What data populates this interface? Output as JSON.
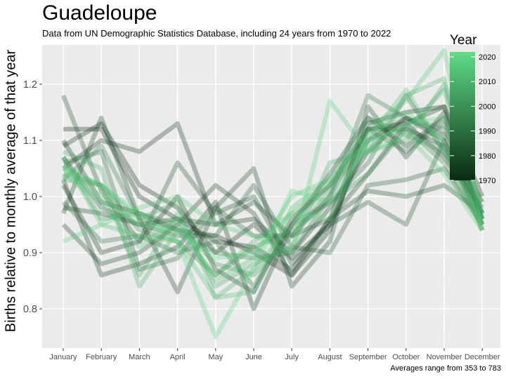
{
  "chart_data": {
    "type": "line",
    "title": "Guadeloupe",
    "subtitle": "Data from UN Demographic Statistics Database, including 24 years from 1970 to 2022",
    "caption": "Averages range from 353 to 783",
    "xlabel": "",
    "ylabel": "Births relative to monthly average of that year",
    "categories": [
      "January",
      "February",
      "March",
      "April",
      "May",
      "June",
      "July",
      "August",
      "September",
      "October",
      "November",
      "December"
    ],
    "ylim": [
      0.73,
      1.27
    ],
    "yticks": [
      0.8,
      0.9,
      1.0,
      1.1,
      1.2
    ],
    "ytick_labels": [
      "0.8",
      "0.9",
      "1.0",
      "1.1",
      "1.2"
    ],
    "legend": {
      "title": "Year",
      "placement": "right",
      "range": [
        1970,
        2022
      ],
      "ticks": [
        1970,
        1980,
        1990,
        2000,
        2010,
        2020
      ],
      "tick_labels": [
        "1970",
        "1980",
        "1990",
        "2000",
        "2010",
        "2020"
      ],
      "low_color": "#0a2a12",
      "high_color": "#5fdc86"
    },
    "background_color": "#ebebeb",
    "grid": true,
    "series": [
      {
        "year": 1970,
        "values": [
          1.12,
          1.12,
          1.0,
          0.96,
          0.92,
          0.91,
          0.87,
          0.96,
          1.13,
          1.15,
          1.16,
          1.0
        ]
      },
      {
        "year": 1971,
        "values": [
          1.09,
          1.13,
          1.02,
          0.98,
          0.9,
          0.95,
          0.89,
          0.95,
          1.1,
          1.14,
          1.11,
          0.97
        ]
      },
      {
        "year": 1972,
        "values": [
          1.1,
          0.99,
          0.97,
          0.94,
          0.93,
          0.9,
          0.86,
          0.94,
          1.12,
          1.12,
          1.09,
          0.96
        ]
      },
      {
        "year": 1973,
        "values": [
          1.05,
          1.1,
          1.08,
          1.13,
          0.95,
          0.96,
          0.9,
          0.98,
          1.08,
          1.14,
          1.1,
          0.94
        ]
      },
      {
        "year": 1974,
        "values": [
          1.02,
          0.9,
          0.92,
          1.0,
          0.87,
          0.83,
          0.96,
          1.02,
          1.12,
          1.13,
          1.07,
          0.98
        ]
      },
      {
        "year": 1975,
        "values": [
          1.03,
          0.86,
          0.88,
          0.91,
          0.99,
          0.8,
          0.95,
          1.04,
          1.14,
          1.09,
          1.14,
          0.96
        ]
      },
      {
        "year": 1977,
        "values": [
          0.95,
          0.88,
          0.9,
          0.95,
          1.02,
          0.97,
          0.86,
          0.96,
          1.04,
          1.13,
          1.16,
          0.96
        ]
      },
      {
        "year": 1978,
        "values": [
          0.97,
          1.14,
          0.96,
          0.83,
          0.98,
          1.05,
          0.84,
          0.92,
          1.16,
          1.07,
          1.15,
          0.95
        ]
      },
      {
        "year": 1980,
        "values": [
          0.98,
          0.97,
          0.95,
          0.96,
          0.95,
          0.99,
          0.93,
          0.96,
          1.01,
          1.0,
          1.02,
          0.97
        ]
      },
      {
        "year": 1982,
        "values": [
          1.18,
          1.01,
          0.92,
          1.06,
          0.97,
          1.0,
          0.88,
          0.95,
          0.99,
          0.95,
          1.1,
          0.95
        ]
      },
      {
        "year": 1985,
        "values": [
          1.07,
          0.98,
          0.95,
          0.93,
          0.93,
          1.02,
          0.91,
          0.9,
          1.02,
          1.03,
          1.05,
          0.95
        ]
      },
      {
        "year": 1988,
        "values": [
          1.06,
          1.08,
          0.87,
          0.89,
          0.98,
          0.93,
          0.93,
          1.0,
          1.12,
          1.08,
          1.13,
          0.97
        ]
      },
      {
        "year": 1991,
        "values": [
          0.99,
          0.92,
          0.93,
          0.9,
          0.92,
          0.84,
          0.95,
          0.99,
          1.06,
          1.18,
          1.08,
          0.99
        ]
      },
      {
        "year": 1994,
        "values": [
          1.03,
          1.09,
          0.96,
          0.94,
          0.9,
          0.89,
          0.9,
          1.0,
          1.18,
          1.14,
          1.12,
          0.99
        ]
      },
      {
        "year": 1998,
        "values": [
          1.04,
          1.02,
          0.94,
          0.92,
          0.86,
          0.91,
          0.94,
          0.99,
          1.04,
          1.12,
          1.06,
          0.95
        ]
      },
      {
        "year": 2002,
        "values": [
          1.07,
          0.96,
          0.97,
          0.95,
          0.88,
          0.86,
          0.93,
          1.01,
          1.14,
          1.11,
          1.08,
          0.96
        ]
      },
      {
        "year": 2006,
        "values": [
          1.05,
          1.02,
          0.86,
          0.97,
          0.84,
          0.88,
          0.91,
          1.06,
          1.08,
          1.1,
          1.2,
          0.97
        ]
      },
      {
        "year": 2008,
        "values": [
          1.08,
          1.05,
          0.84,
          0.94,
          0.86,
          0.92,
          0.97,
          1.02,
          1.1,
          1.12,
          1.19,
          0.94
        ]
      },
      {
        "year": 2010,
        "values": [
          1.03,
          1.02,
          0.96,
          0.99,
          0.82,
          0.87,
          0.95,
          1.02,
          1.08,
          1.18,
          1.21,
          0.96
        ]
      },
      {
        "year": 2013,
        "values": [
          1.07,
          0.95,
          0.93,
          0.92,
          0.82,
          0.83,
          0.98,
          1.03,
          1.1,
          1.19,
          1.08,
          0.95
        ]
      },
      {
        "year": 2016,
        "values": [
          1.04,
          0.99,
          0.91,
          0.96,
          0.85,
          0.89,
          1.0,
          1.03,
          1.12,
          1.17,
          1.26,
          0.96
        ]
      },
      {
        "year": 2018,
        "values": [
          0.92,
          0.95,
          0.98,
          1.0,
          0.95,
          0.93,
          0.9,
          1.17,
          1.08,
          1.11,
          1.04,
          0.94
        ]
      },
      {
        "year": 2020,
        "values": [
          1.05,
          1.02,
          0.97,
          0.92,
          0.75,
          0.87,
          1.01,
          0.99,
          1.09,
          1.13,
          1.14,
          0.95
        ]
      },
      {
        "year": 2022,
        "values": [
          1.05,
          1.0,
          0.95,
          0.94,
          0.89,
          0.9,
          0.97,
          0.96,
          1.11,
          1.15,
          1.1,
          0.94
        ]
      }
    ]
  }
}
